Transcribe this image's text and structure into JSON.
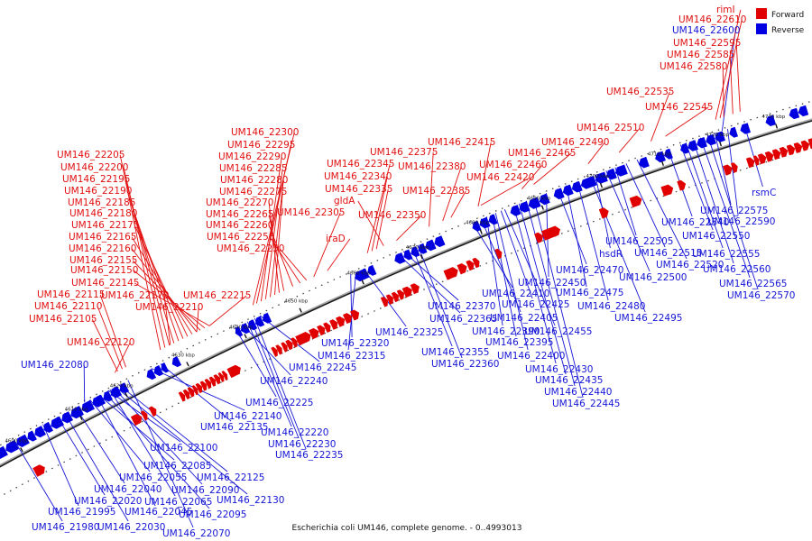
{
  "caption": "Escherichia coli UM146, complete genome. - 0..4993013",
  "legend": {
    "forward_label": "Forward",
    "reverse_label": "Reverse",
    "forward_color": "#e00000",
    "reverse_color": "#0000e0"
  },
  "scale_labels": [
    "4600 kbp",
    "4610 kbp",
    "4620 kbp",
    "4630 kbp",
    "4640 kbp",
    "4650 kbp",
    "4660 kbp",
    "4670 kbp",
    "4680 kbp",
    "4690 kbp",
    "4700 kbp",
    "4710 kbp",
    "4720 kbp",
    "4730 kbp"
  ],
  "forward_genes": [
    "UM146_22205",
    "UM146_22200",
    "UM146_22195",
    "UM146_22190",
    "UM146_22185",
    "UM146_22180",
    "UM146_22175",
    "UM146_22165",
    "UM146_22160",
    "UM146_22155",
    "UM146_22150",
    "UM146_22145",
    "UM146_22115",
    "UM146_22170",
    "UM146_22110",
    "UM146_22210",
    "UM146_22105",
    "UM146_22120",
    "UM146_22215",
    "UM146_22300",
    "UM146_22295",
    "UM146_22290",
    "UM146_22285",
    "UM146_22280",
    "UM146_22275",
    "UM146_22270",
    "UM146_22265",
    "UM146_22260",
    "UM146_22255",
    "UM146_22250",
    "UM146_22305",
    "UM146_22345",
    "UM146_22340",
    "UM146_22335",
    "gldA",
    "iraD",
    "UM146_22350",
    "UM146_22375",
    "UM146_22380",
    "UM146_22385",
    "UM146_22415",
    "UM146_22420",
    "UM146_22460",
    "UM146_22465",
    "UM146_22490",
    "UM146_22510",
    "UM146_22535",
    "UM146_22545",
    "rimI",
    "UM146_22610",
    "UM146_22595",
    "UM146_22585",
    "UM146_22580"
  ],
  "reverse_genes": [
    "UM146_22080",
    "UM146_22140",
    "UM146_22135",
    "UM146_22225",
    "UM146_22240",
    "UM146_22245",
    "UM146_22220",
    "UM146_22230",
    "UM146_22235",
    "UM146_22100",
    "UM146_22085",
    "UM146_22055",
    "UM146_22040",
    "UM146_22020",
    "UM146_22045",
    "UM146_21995",
    "UM146_21980",
    "UM146_22030",
    "UM146_22070",
    "UM146_22125",
    "UM146_22090",
    "UM146_22065",
    "UM146_22130",
    "UM146_22095",
    "UM146_22315",
    "UM146_22320",
    "UM146_22325",
    "UM146_22370",
    "UM146_22365",
    "UM146_22355",
    "UM146_22360",
    "UM146_22410",
    "UM146_22405",
    "UM146_22390",
    "UM146_22395",
    "UM146_22400",
    "UM146_22425",
    "UM146_22455",
    "UM146_22430",
    "UM146_22435",
    "UM146_22440",
    "UM146_22445",
    "UM146_22450",
    "UM146_22470",
    "UM146_22475",
    "UM146_22480",
    "UM146_22495",
    "hsdR",
    "UM146_22500",
    "UM146_22505",
    "UM146_22515",
    "UM146_22520",
    "UM146_22540",
    "UM146_22550",
    "UM146_22555",
    "UM146_22560",
    "UM146_22565",
    "UM146_22570",
    "UM146_22575",
    "UM146_22590",
    "rsmC",
    "UM146_22600"
  ]
}
